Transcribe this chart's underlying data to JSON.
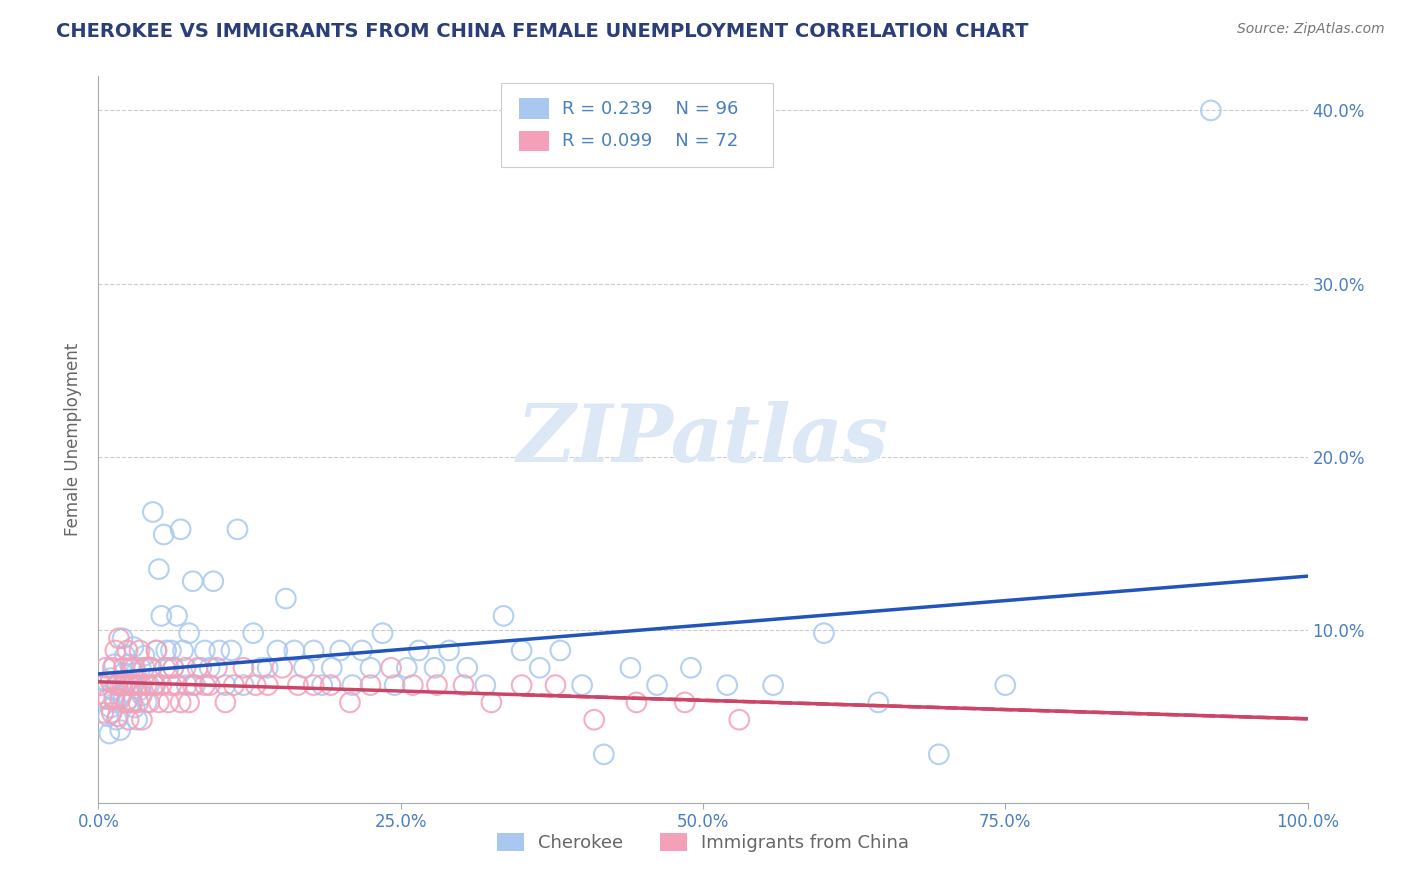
{
  "title": "CHEROKEE VS IMMIGRANTS FROM CHINA FEMALE UNEMPLOYMENT CORRELATION CHART",
  "source": "Source: ZipAtlas.com",
  "ylabel": "Female Unemployment",
  "xlim": [
    0.0,
    1.0
  ],
  "ylim": [
    -0.02,
    0.44
  ],
  "plot_ylim": [
    0.0,
    0.42
  ],
  "xticks": [
    0.0,
    0.25,
    0.5,
    0.75,
    1.0
  ],
  "xtick_labels": [
    "0.0%",
    "25.0%",
    "50.0%",
    "75.0%",
    "100.0%"
  ],
  "yticks": [
    0.0,
    0.1,
    0.2,
    0.3,
    0.4
  ],
  "ytick_labels": [
    "",
    "10.0%",
    "20.0%",
    "30.0%",
    "40.0%"
  ],
  "watermark": "ZIPatlas",
  "series": [
    {
      "name": "Cherokee",
      "R": 0.239,
      "N": 96,
      "color": "#a8c8f0",
      "line_color": "#2255bb",
      "line_style": "solid",
      "x": [
        0.005,
        0.007,
        0.008,
        0.009,
        0.01,
        0.01,
        0.012,
        0.013,
        0.014,
        0.015,
        0.016,
        0.018,
        0.019,
        0.02,
        0.021,
        0.022,
        0.023,
        0.025,
        0.026,
        0.027,
        0.028,
        0.029,
        0.03,
        0.031,
        0.032,
        0.034,
        0.035,
        0.036,
        0.038,
        0.04,
        0.042,
        0.043,
        0.045,
        0.047,
        0.048,
        0.05,
        0.052,
        0.054,
        0.056,
        0.058,
        0.06,
        0.062,
        0.065,
        0.068,
        0.07,
        0.073,
        0.075,
        0.078,
        0.08,
        0.085,
        0.088,
        0.092,
        0.095,
        0.1,
        0.105,
        0.11,
        0.115,
        0.12,
        0.128,
        0.135,
        0.14,
        0.148,
        0.155,
        0.162,
        0.17,
        0.178,
        0.185,
        0.193,
        0.2,
        0.21,
        0.218,
        0.225,
        0.235,
        0.245,
        0.255,
        0.265,
        0.278,
        0.29,
        0.305,
        0.32,
        0.335,
        0.35,
        0.365,
        0.382,
        0.4,
        0.418,
        0.44,
        0.462,
        0.49,
        0.52,
        0.558,
        0.6,
        0.645,
        0.695,
        0.75,
        0.92
      ],
      "y": [
        0.06,
        0.07,
        0.05,
        0.04,
        0.072,
        0.055,
        0.065,
        0.08,
        0.058,
        0.048,
        0.068,
        0.042,
        0.062,
        0.095,
        0.075,
        0.085,
        0.07,
        0.06,
        0.08,
        0.058,
        0.068,
        0.09,
        0.055,
        0.075,
        0.048,
        0.065,
        0.078,
        0.062,
        0.085,
        0.058,
        0.068,
        0.078,
        0.168,
        0.068,
        0.088,
        0.135,
        0.108,
        0.155,
        0.088,
        0.078,
        0.088,
        0.078,
        0.108,
        0.158,
        0.088,
        0.068,
        0.098,
        0.128,
        0.068,
        0.078,
        0.088,
        0.078,
        0.128,
        0.088,
        0.068,
        0.088,
        0.158,
        0.068,
        0.098,
        0.078,
        0.078,
        0.088,
        0.118,
        0.088,
        0.078,
        0.088,
        0.068,
        0.078,
        0.088,
        0.068,
        0.088,
        0.078,
        0.098,
        0.068,
        0.078,
        0.088,
        0.078,
        0.088,
        0.078,
        0.068,
        0.108,
        0.088,
        0.078,
        0.088,
        0.068,
        0.028,
        0.078,
        0.068,
        0.078,
        0.068,
        0.068,
        0.098,
        0.058,
        0.028,
        0.068,
        0.4
      ]
    },
    {
      "name": "Immigrants from China",
      "R": 0.099,
      "N": 72,
      "color": "#f4a0b8",
      "line_color": "#cc4466",
      "line_style": "solid",
      "x": [
        0.002,
        0.004,
        0.006,
        0.008,
        0.01,
        0.011,
        0.012,
        0.013,
        0.014,
        0.015,
        0.016,
        0.017,
        0.018,
        0.02,
        0.021,
        0.022,
        0.023,
        0.024,
        0.025,
        0.026,
        0.027,
        0.028,
        0.029,
        0.03,
        0.032,
        0.033,
        0.034,
        0.035,
        0.036,
        0.038,
        0.04,
        0.042,
        0.044,
        0.046,
        0.048,
        0.05,
        0.052,
        0.055,
        0.058,
        0.06,
        0.062,
        0.065,
        0.068,
        0.072,
        0.075,
        0.078,
        0.082,
        0.088,
        0.092,
        0.098,
        0.105,
        0.112,
        0.12,
        0.13,
        0.14,
        0.152,
        0.165,
        0.178,
        0.192,
        0.208,
        0.225,
        0.242,
        0.26,
        0.28,
        0.302,
        0.325,
        0.35,
        0.378,
        0.41,
        0.445,
        0.485,
        0.53
      ],
      "y": [
        0.068,
        0.052,
        0.078,
        0.06,
        0.07,
        0.052,
        0.078,
        0.06,
        0.088,
        0.068,
        0.05,
        0.095,
        0.06,
        0.068,
        0.078,
        0.068,
        0.058,
        0.088,
        0.048,
        0.068,
        0.078,
        0.058,
        0.068,
        0.078,
        0.068,
        0.058,
        0.088,
        0.068,
        0.048,
        0.078,
        0.068,
        0.058,
        0.078,
        0.068,
        0.088,
        0.058,
        0.068,
        0.078,
        0.058,
        0.068,
        0.078,
        0.068,
        0.058,
        0.078,
        0.058,
        0.068,
        0.078,
        0.068,
        0.068,
        0.078,
        0.058,
        0.068,
        0.078,
        0.068,
        0.068,
        0.078,
        0.068,
        0.068,
        0.068,
        0.058,
        0.068,
        0.078,
        0.068,
        0.068,
        0.068,
        0.058,
        0.068,
        0.068,
        0.048,
        0.058,
        0.058,
        0.048
      ]
    }
  ],
  "title_color": "#2c3e7a",
  "source_color": "#777777",
  "grid_color": "#cccccc",
  "background_color": "#ffffff",
  "watermark_color": "#dce8f5",
  "tick_label_color": "#4a7fc1",
  "ylabel_color": "#666666",
  "legend_text_color": "#4a7fc1"
}
